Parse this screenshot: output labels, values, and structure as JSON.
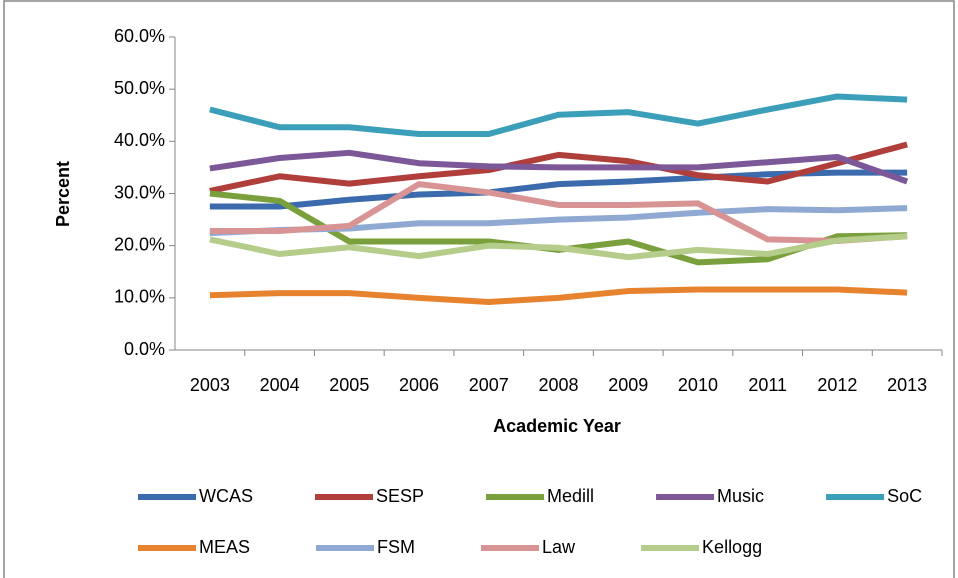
{
  "chart_data": {
    "type": "line",
    "x_label": "Academic Year",
    "y_label": "Percent",
    "categories": [
      "2003",
      "2004",
      "2005",
      "2006",
      "2007",
      "2008",
      "2009",
      "2010",
      "2011",
      "2012",
      "2013"
    ],
    "ylim": [
      0,
      60
    ],
    "yticks": [
      {
        "value": 0,
        "label": "0.0%"
      },
      {
        "value": 10,
        "label": "10.0%"
      },
      {
        "value": 20,
        "label": "20.0%"
      },
      {
        "value": 30,
        "label": "30.0%"
      },
      {
        "value": 40,
        "label": "40.0%"
      },
      {
        "value": 50,
        "label": "50.0%"
      },
      {
        "value": 60,
        "label": "60.0%"
      }
    ],
    "grid": false,
    "series": [
      {
        "name": "WCAS",
        "color": "#3c6bad",
        "values": [
          27.5,
          27.5,
          28.8,
          29.8,
          30.2,
          31.8,
          32.3,
          33,
          33.7,
          34,
          34
        ]
      },
      {
        "name": "SESP",
        "color": "#b03f3c",
        "values": [
          30.5,
          33.3,
          31.9,
          33.3,
          34.5,
          37.4,
          36.2,
          33.5,
          32.3,
          35.8,
          39.4
        ]
      },
      {
        "name": "Medill",
        "color": "#7aa03e",
        "values": [
          30,
          28.6,
          20.8,
          20.8,
          20.8,
          19.2,
          20.8,
          16.8,
          17.4,
          21.8,
          22
        ]
      },
      {
        "name": "Music",
        "color": "#7c5898",
        "values": [
          34.8,
          36.8,
          37.8,
          35.8,
          35.2,
          35,
          35,
          35,
          36,
          37,
          32.3
        ]
      },
      {
        "name": "SoC",
        "color": "#3b9fba",
        "values": [
          46.1,
          42.7,
          42.7,
          41.4,
          41.4,
          45.1,
          45.6,
          43.4,
          46.1,
          48.6,
          48
        ]
      },
      {
        "name": "MEAS",
        "color": "#e7832f",
        "values": [
          10.5,
          10.9,
          10.9,
          10,
          9.2,
          10,
          11.3,
          11.6,
          11.6,
          11.6,
          11
        ]
      },
      {
        "name": "FSM",
        "color": "#8fa9d2",
        "values": [
          22.4,
          23,
          23.3,
          24.3,
          24.3,
          25,
          25.4,
          26.3,
          27,
          26.8,
          27.2
        ]
      },
      {
        "name": "Law",
        "color": "#d89494",
        "values": [
          22.8,
          22.8,
          23.8,
          31.8,
          30.2,
          27.8,
          27.8,
          28.1,
          21.2,
          20.9,
          21.8
        ]
      },
      {
        "name": "Kellogg",
        "color": "#b5cd8a",
        "values": [
          21.2,
          18.4,
          19.7,
          18,
          20,
          19.6,
          17.8,
          19.2,
          18.4,
          21,
          21.8
        ]
      }
    ]
  }
}
